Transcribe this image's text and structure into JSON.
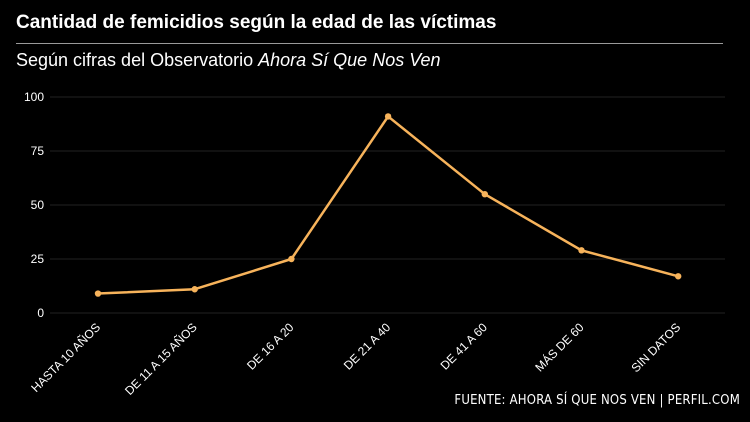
{
  "header": {
    "title": "Cantidad de femicidios según la edad de las víctimas",
    "subtitle_prefix": "Según cifras del Observatorio ",
    "subtitle_italic": "Ahora Sí Que Nos Ven"
  },
  "footer": {
    "source": "FUENTE: AHORA SÍ QUE NOS VEN | PERFIL.COM"
  },
  "colors": {
    "line": "#f7b35b",
    "background": "#000000",
    "grid": "#222222",
    "text": "#ffffff"
  },
  "chart_data": {
    "type": "line",
    "title": "Cantidad de femicidios según la edad de las víctimas",
    "subtitle": "Según cifras del Observatorio Ahora Sí Que Nos Ven",
    "categories": [
      "HASTA 10 AÑOS",
      "DE 11 A 15 AÑOS",
      "DE 16 A 20",
      "DE 21 A 40",
      "DE 41 A 60",
      "MÁS DE 60",
      "SIN DATOS"
    ],
    "series": [
      {
        "values": [
          9,
          11,
          25,
          91,
          55,
          29,
          17
        ]
      }
    ],
    "y_ticks": [
      "0",
      "25",
      "50",
      "75",
      "100"
    ],
    "ylim": [
      0,
      100
    ],
    "grid": true,
    "legend": "none"
  }
}
